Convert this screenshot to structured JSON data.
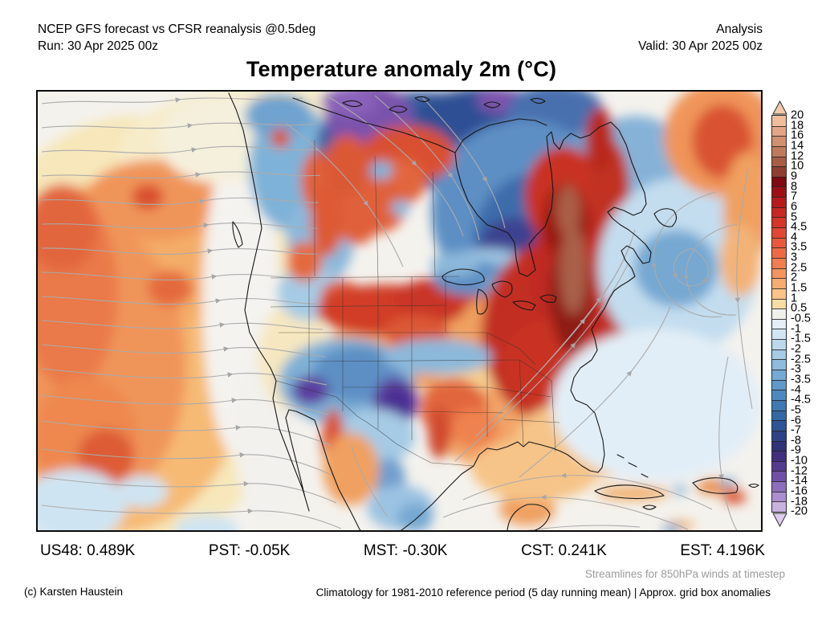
{
  "header": {
    "left_line1": "NCEP GFS forecast vs CFSR reanalysis @0.5deg",
    "left_line2": "Run: 30 Apr 2025 00z",
    "right_line1": "Analysis",
    "right_line2": "Valid: 30 Apr 2025 00z"
  },
  "title": "Temperature anomaly 2m (°C)",
  "colorbar": {
    "unit": "°C",
    "ticks": [
      "20",
      "18",
      "16",
      "14",
      "12",
      "10",
      "9",
      "8",
      "7",
      "6",
      "5",
      "4.5",
      "4",
      "3.5",
      "3",
      "2.5",
      "2",
      "1.5",
      "1",
      "0.5",
      "-0.5",
      "-1",
      "-1.5",
      "-2",
      "-2.5",
      "-3",
      "-3.5",
      "-4",
      "-4.5",
      "-5",
      "-6",
      "-7",
      "-8",
      "-9",
      "-10",
      "-12",
      "-14",
      "-16",
      "-18",
      "-20"
    ],
    "colors": [
      "#f0bd9d",
      "#e2a585",
      "#d19070",
      "#bf7a5d",
      "#a85c46",
      "#8f3f30",
      "#7f0a10",
      "#9c1015",
      "#b61a1c",
      "#c92723",
      "#d6352a",
      "#e04734",
      "#e9583e",
      "#ee6a46",
      "#f07e50",
      "#f3945f",
      "#f6ab72",
      "#f9c489",
      "#f7dda4",
      "#f1f1ec",
      "#e3eef6",
      "#d2e5f2",
      "#bcd9ec",
      "#a5cbe5",
      "#8dbcdd",
      "#74aad3",
      "#5f99c8",
      "#4d89bd",
      "#3f79b1",
      "#3467a4",
      "#2e5595",
      "#2c4386",
      "#323276",
      "#41307c",
      "#553b8f",
      "#6f51a5",
      "#8c6eba",
      "#ab8ecd",
      "#c9b2e0"
    ],
    "arrow_top_color": "#f2c9a9",
    "arrow_bottom_color": "#decdee"
  },
  "stats": {
    "items": [
      "US48: 0.489K",
      "PST: -0.05K",
      "MST: -0.30K",
      "CST: 0.241K",
      "EST: 4.196K"
    ]
  },
  "footer": {
    "streamline_note": "Streamlines for 850hPa winds at timestep",
    "copyright": "(c) Karsten Haustein",
    "climatology_note": "Climatology for 1981-2010 reference period (5 day running mean) | Approx. grid box anomalies"
  },
  "chart_data": {
    "type": "heatmap",
    "title": "Temperature anomaly 2m (°C)",
    "subtitle_left": "NCEP GFS forecast vs CFSR reanalysis @0.5deg",
    "run": "30 Apr 2025 00z",
    "valid": "30 Apr 2025 00z",
    "mode": "Analysis",
    "legend_position": "right",
    "scale_ticks_degC": [
      20,
      18,
      16,
      14,
      12,
      10,
      9,
      8,
      7,
      6,
      5,
      4.5,
      4,
      3.5,
      3,
      2.5,
      2,
      1.5,
      1,
      0.5,
      -0.5,
      -1,
      -1.5,
      -2,
      -2.5,
      -3,
      -3.5,
      -4,
      -4.5,
      -5,
      -6,
      -7,
      -8,
      -9,
      -10,
      -12,
      -14,
      -16,
      -18,
      -20
    ],
    "region_mean_anomalies_K": {
      "US48": 0.489,
      "PST": -0.05,
      "MST": -0.3,
      "CST": 0.241,
      "EST": 4.196
    }
  }
}
